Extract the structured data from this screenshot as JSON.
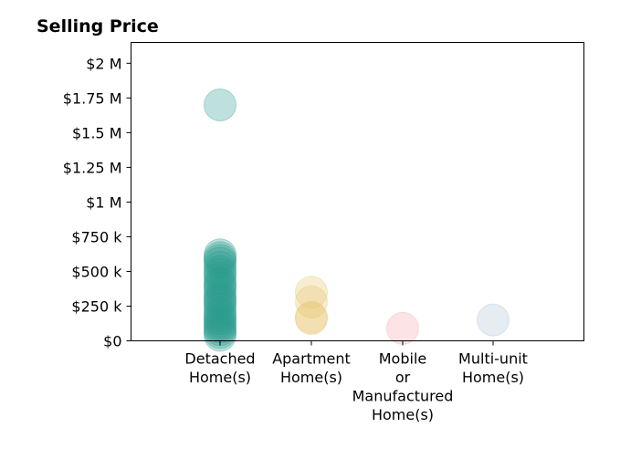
{
  "chart_data": {
    "type": "scatter",
    "title": "Selling Price",
    "xlabel": "",
    "ylabel": "",
    "ylim": [
      0,
      2150000
    ],
    "yticks": [
      {
        "value": 0,
        "label": "$0"
      },
      {
        "value": 250000,
        "label": "$250 k"
      },
      {
        "value": 500000,
        "label": "$500 k"
      },
      {
        "value": 750000,
        "label": "$750 k"
      },
      {
        "value": 1000000,
        "label": "$1 M"
      },
      {
        "value": 1250000,
        "label": "$1.25 M"
      },
      {
        "value": 1500000,
        "label": "$1.5 M"
      },
      {
        "value": 1750000,
        "label": "$1.75 M"
      },
      {
        "value": 2000000,
        "label": "$2 M"
      }
    ],
    "categories": [
      {
        "lines": [
          "Detached",
          "Home(s)"
        ]
      },
      {
        "lines": [
          "Apartment",
          "Home(s)"
        ]
      },
      {
        "lines": [
          "Mobile",
          "or",
          "Manufactured",
          "Home(s)"
        ]
      },
      {
        "lines": [
          "Multi-unit",
          "Home(s)"
        ]
      }
    ],
    "grid": false,
    "legend": "none",
    "colors": [
      "#2a9d8f",
      "#e9c46a",
      "#f4a3a8",
      "#a8c0d3"
    ],
    "series": [
      {
        "category": 0,
        "color": "#2a9d8f",
        "values": [
          1700000,
          40000,
          60000,
          80000,
          100000,
          120000,
          140000,
          160000,
          180000,
          200000,
          230000,
          260000,
          280000,
          300000,
          320000,
          350000,
          380000,
          400000,
          420000,
          450000,
          480000,
          500000,
          530000,
          560000,
          580000,
          600000,
          620000
        ]
      },
      {
        "category": 1,
        "color": "#e9c46a",
        "values": [
          350000,
          280000,
          170000,
          160000
        ]
      },
      {
        "category": 2,
        "color": "#f4a3a8",
        "values": [
          90000
        ]
      },
      {
        "category": 3,
        "color": "#a8c0d3",
        "values": [
          150000
        ]
      }
    ]
  }
}
